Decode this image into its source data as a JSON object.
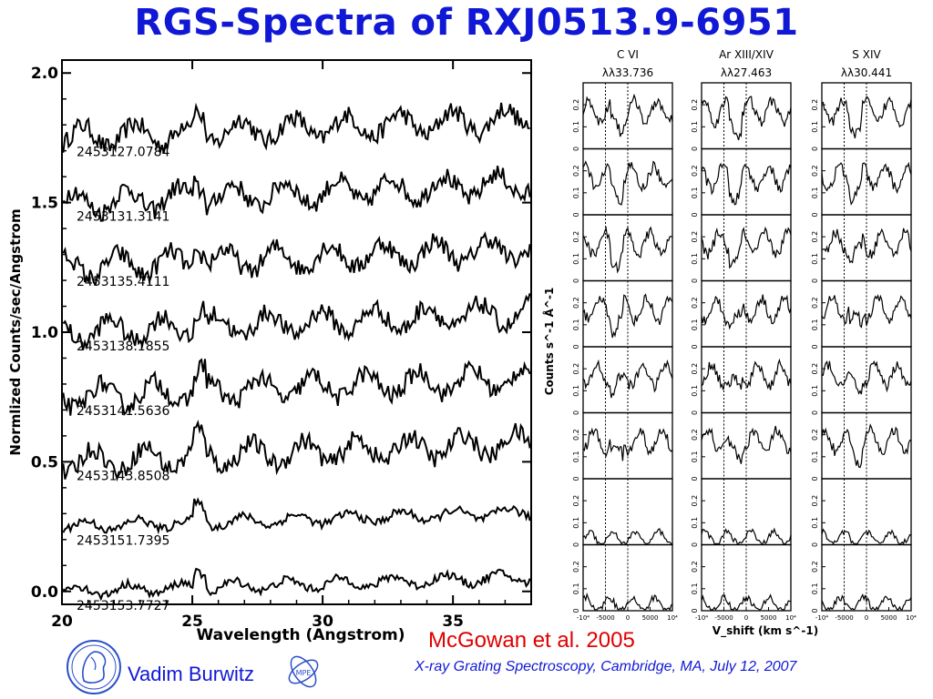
{
  "title": "RGS-Spectra of RXJ0513.9-6951",
  "citation": "McGowan et al. 2005",
  "author": "Vadim Burwitz",
  "conference": "X-ray Grating Spectroscopy, Cambridge, MA, July 12, 2007",
  "logo_text": "MPE",
  "colors": {
    "title": "#1018d6",
    "citation": "#e00000",
    "ink": "#000000",
    "accent_logo": "#2a4fc8"
  },
  "chart_data": [
    {
      "type": "line",
      "xlabel": "Wavelength (Angstrom)",
      "ylabel": "Normlized Counts/sec/Angstrom",
      "xlim": [
        20,
        38
      ],
      "ylim": [
        -0.05,
        2.05
      ],
      "x_ticks": [
        "20",
        "25",
        "30",
        "35"
      ],
      "y_ticks": [
        "0.0",
        "0.5",
        "1.0",
        "1.5",
        "2.0"
      ],
      "series": [
        {
          "name": "2453127.0784",
          "baseline": 1.75
        },
        {
          "name": "2453131.3141",
          "baseline": 1.5
        },
        {
          "name": "2453135.4111",
          "baseline": 1.25
        },
        {
          "name": "2453138.1855",
          "baseline": 1.0
        },
        {
          "name": "2453141.5636",
          "baseline": 0.75
        },
        {
          "name": "2453143.8508",
          "baseline": 0.5
        },
        {
          "name": "2453151.7395",
          "baseline": 0.25
        },
        {
          "name": "2453153.7727",
          "baseline": 0.0
        }
      ]
    },
    {
      "type": "line",
      "layout": "grid 3 columns x 8 rows",
      "columns": [
        {
          "ion": "C VI",
          "line": "λλ33.736"
        },
        {
          "ion": "Ar XIII/XIV",
          "line": "λλ27.463"
        },
        {
          "ion": "S XIV",
          "line": "λλ30.441"
        }
      ],
      "xlabel": "V_shift (km s^-1)",
      "ylabel": "Counts s^-1 Å^-1",
      "xlim": [
        -10000,
        10000
      ],
      "ylim": [
        0,
        0.3
      ],
      "x_ticks": [
        "-10⁴",
        "-5000",
        "0",
        "5000",
        "10⁴"
      ],
      "y_ticks": [
        "0",
        "0.1",
        "0.2"
      ]
    }
  ]
}
